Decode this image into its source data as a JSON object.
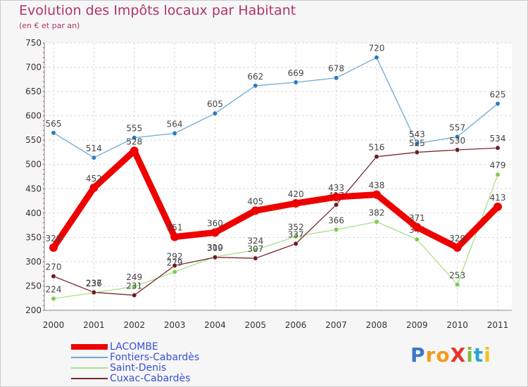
{
  "chart_data": {
    "type": "line",
    "title": "Evolution des Impôts locaux par Habitant",
    "subtitle": "(en € et par an)",
    "xlabel": "",
    "ylabel": "",
    "ylim": [
      200,
      750
    ],
    "yticks": [
      200,
      250,
      300,
      350,
      400,
      450,
      500,
      550,
      600,
      650,
      700,
      750
    ],
    "grid": true,
    "legend_position": "bottom-left",
    "x": [
      "2000",
      "2001",
      "2002",
      "2003",
      "2004",
      "2005",
      "2006",
      "2007",
      "2008",
      "2009",
      "2010",
      "2011"
    ],
    "series": [
      {
        "name": "Fontiers-Cabardès",
        "color": "#6fa8d6",
        "point_color": "#2e7bbf",
        "values": [
          565,
          514,
          555,
          564,
          605,
          662,
          669,
          678,
          720,
          543,
          557,
          625
        ],
        "labels": [
          "565",
          "514",
          "555",
          "564",
          "605",
          "662",
          "669",
          "678",
          "720",
          "543",
          "557",
          "625"
        ]
      },
      {
        "name": "Saint-Denis",
        "color": "#a8e08a",
        "point_color": "#7dcc4f",
        "values": [
          224,
          236,
          249,
          279,
          310,
          324,
          352,
          366,
          382,
          346,
          253,
          479
        ],
        "labels": [
          "224",
          "236",
          "249",
          "279",
          "310",
          "324",
          "352",
          "366",
          "382",
          "346",
          "253",
          "479"
        ]
      },
      {
        "name": "Cuxac-Cabardès",
        "color": "#7a2a30",
        "point_color": "#6b1e22",
        "values": [
          270,
          237,
          231,
          292,
          309,
          307,
          337,
          417,
          516,
          525,
          530,
          534
        ],
        "labels": [
          "270",
          "237",
          "231",
          "292",
          "309",
          "307",
          "337",
          "417",
          "516",
          "525",
          "530",
          "534"
        ]
      },
      {
        "name": "LACOMBE",
        "color": "#ee0000",
        "point_color": "#ee0000",
        "values": [
          329,
          452,
          528,
          351,
          360,
          405,
          420,
          433,
          438,
          371,
          329,
          413
        ],
        "labels": [
          "329",
          "452",
          "528",
          "351",
          "360",
          "405",
          "420",
          "433",
          "438",
          "371",
          "329",
          "413"
        ]
      }
    ],
    "legend": [
      {
        "name": "LACOMBE",
        "color": "#ee0000"
      },
      {
        "name": "Fontiers-Cabardès",
        "color": "#6fa8d6"
      },
      {
        "name": "Saint-Denis",
        "color": "#a8e08a"
      },
      {
        "name": "Cuxac-Cabardès",
        "color": "#7a2a30"
      }
    ]
  },
  "logo": {
    "text": "ProXiti",
    "letters": [
      "P",
      "r",
      "o",
      "X",
      "i",
      "t",
      "i"
    ],
    "colors": [
      "#3a78c9",
      "#f29a1b",
      "#f29a1b",
      "#e8332a",
      "#7dbf3a",
      "#2aa4d6",
      "#f2c21b"
    ]
  }
}
